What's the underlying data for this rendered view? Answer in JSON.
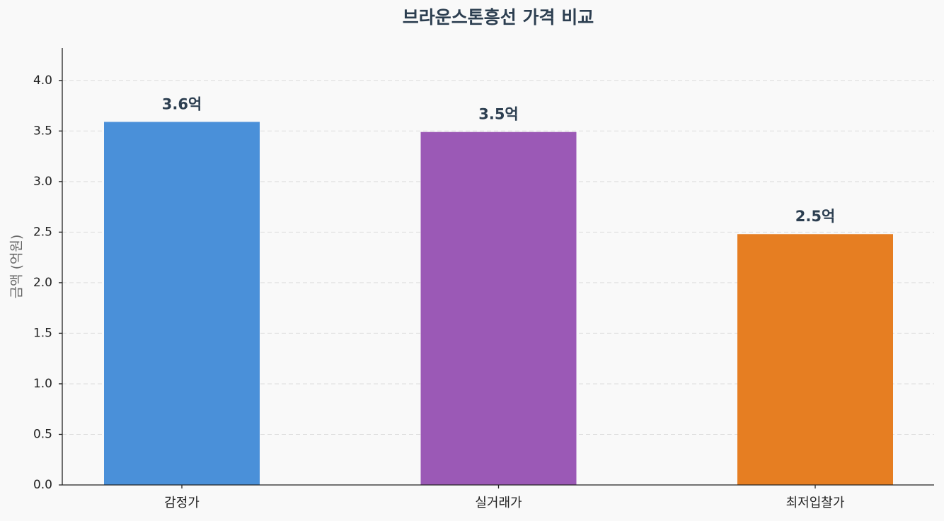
{
  "chart_data": {
    "type": "bar",
    "title": "브라운스톤흥선 가격 비교",
    "y_label": "금액 (억원)",
    "categories": [
      "감정가",
      "실거래가",
      "최저입찰가"
    ],
    "values": [
      3.59,
      3.49,
      2.48
    ],
    "value_labels": [
      "3.6억",
      "3.5억",
      "2.5억"
    ],
    "colors": [
      "#4a90d9",
      "#9b59b6",
      "#e67e22"
    ],
    "ylim": [
      0,
      4.32
    ],
    "yticks": [
      {
        "value": 0,
        "label": "0.0"
      },
      0.5,
      {
        "value": 1,
        "label": "1.0"
      },
      1.5,
      {
        "value": 2,
        "label": "2.0"
      },
      2.5,
      {
        "value": 3,
        "label": "3.0"
      },
      3.5,
      {
        "value": 4,
        "label": "4.0"
      }
    ],
    "grid": true
  }
}
